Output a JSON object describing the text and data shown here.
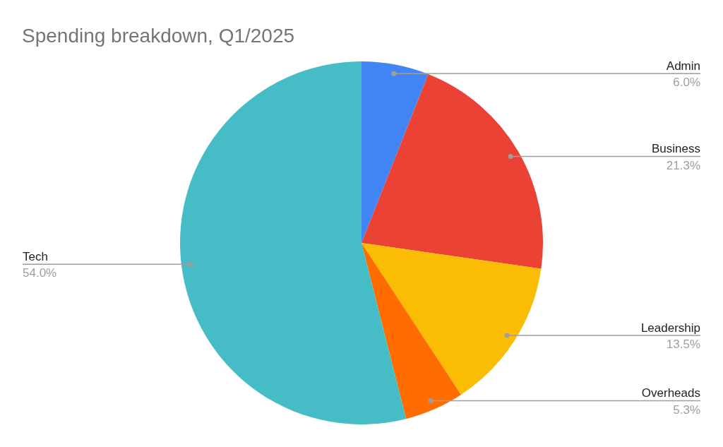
{
  "chart_data": {
    "type": "pie",
    "title": "Spending breakdown, Q1/2025",
    "categories": [
      "Admin",
      "Business",
      "Leadership",
      "Overheads",
      "Tech"
    ],
    "values": [
      6.0,
      21.3,
      13.5,
      5.3,
      54.0
    ],
    "colors": [
      "#4285f4",
      "#ea4335",
      "#fbbc04",
      "#ff6d01",
      "#46bdc6"
    ],
    "value_labels": [
      "6.0%",
      "21.3%",
      "13.5%",
      "5.3%",
      "54.0%"
    ],
    "legend": false
  }
}
